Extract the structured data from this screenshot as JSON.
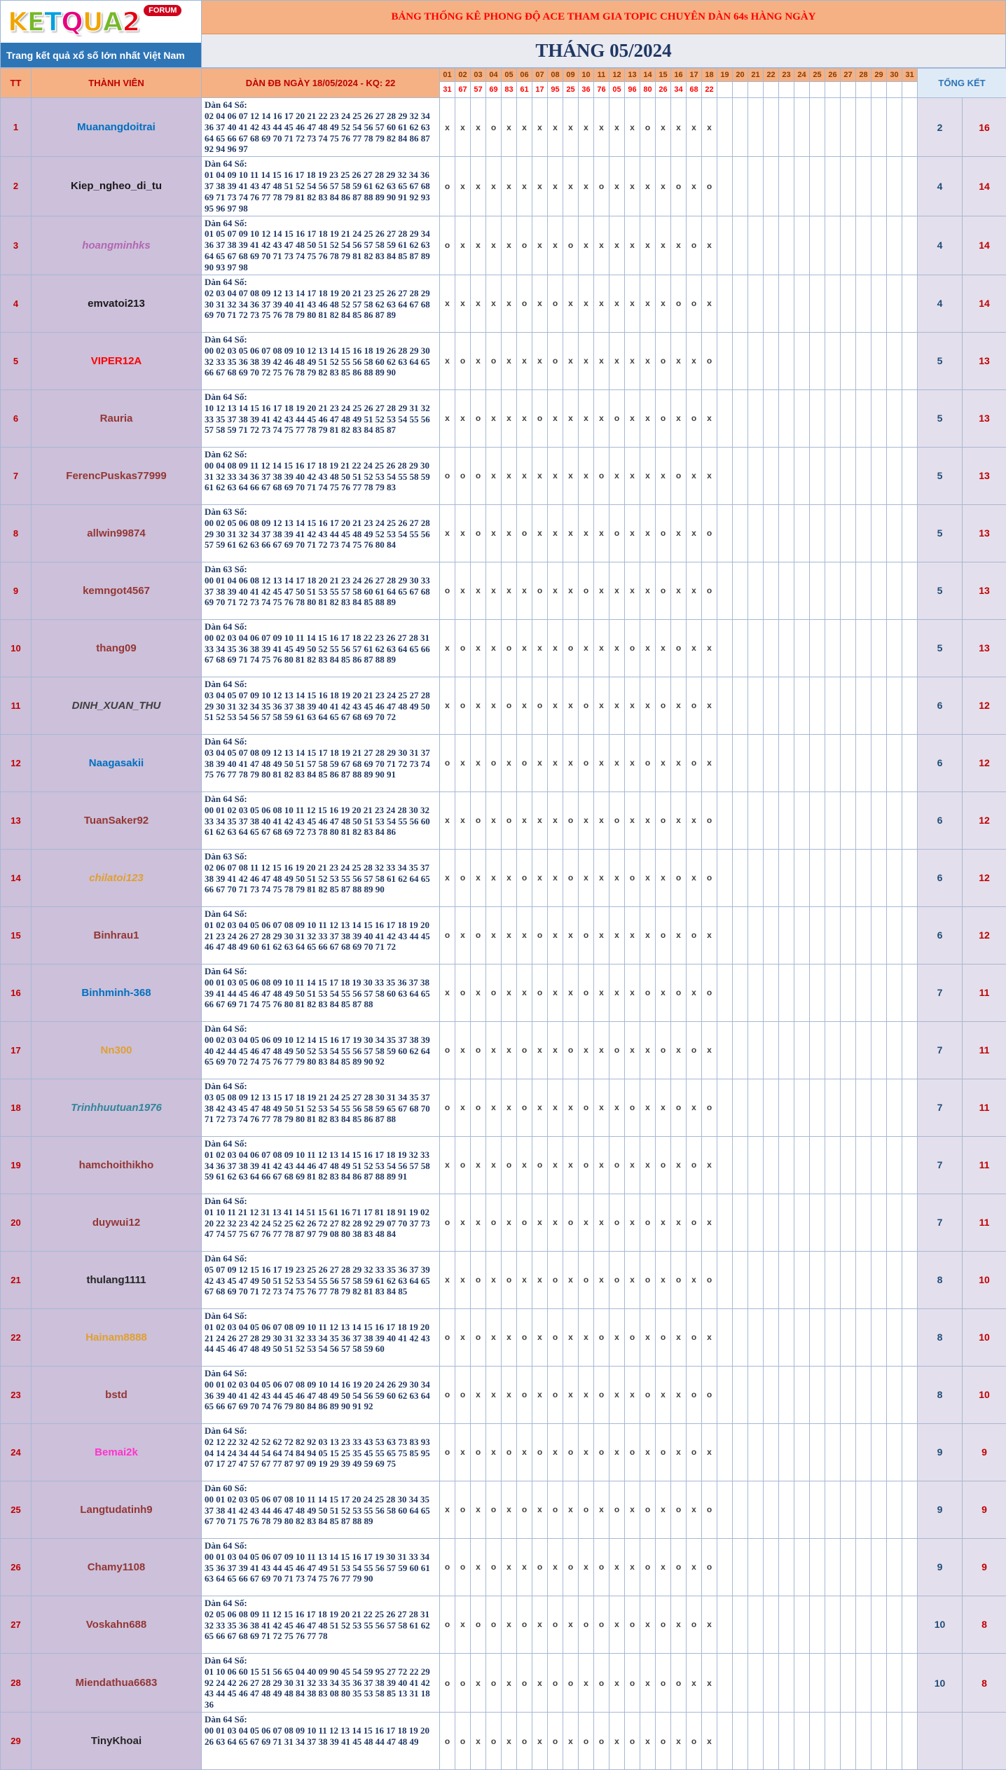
{
  "logo": {
    "letters": [
      {
        "ch": "K",
        "color": "#F0A500"
      },
      {
        "ch": "E",
        "color": "#76B82A"
      },
      {
        "ch": "T",
        "color": "#00A0DF"
      },
      {
        "ch": "Q",
        "color": "#E6007E"
      },
      {
        "ch": "U",
        "color": "#F0A500"
      },
      {
        "ch": "A",
        "color": "#76B82A"
      },
      {
        "ch": "2",
        "color": "#E30613"
      }
    ],
    "forum_badge": "FORUM",
    "tagline": "Trang kết quả xổ số lớn nhất Việt Nam"
  },
  "banner": {
    "title": "BẢNG THỐNG KÊ PHONG ĐỘ ACE THAM GIA TOPIC CHUYÊN DÀN 64s HÀNG NGÀY",
    "month": "THÁNG 05/2024"
  },
  "table": {
    "headers": {
      "tt": "TT",
      "member": "THÀNH VIÊN",
      "dan": "DÀN ĐB NGÀY 18/05/2024 - KQ: 22",
      "total": "TỔNG KẾT"
    },
    "days": [
      "01",
      "02",
      "03",
      "04",
      "05",
      "06",
      "07",
      "08",
      "09",
      "10",
      "11",
      "12",
      "13",
      "14",
      "15",
      "16",
      "17",
      "18",
      "19",
      "20",
      "21",
      "22",
      "23",
      "24",
      "25",
      "26",
      "27",
      "28",
      "29",
      "30",
      "31"
    ],
    "results": [
      "31",
      "67",
      "57",
      "69",
      "83",
      "61",
      "17",
      "95",
      "25",
      "36",
      "76",
      "05",
      "96",
      "80",
      "26",
      "34",
      "68",
      "22",
      "",
      "",
      "",
      "",
      "",
      "",
      "",
      "",
      "",
      "",
      "",
      "",
      ""
    ],
    "rows": [
      {
        "tt": "1",
        "name": "Muanangdoitrai",
        "color": "#0070C0",
        "italic": false,
        "label": "Dàn 64 Số:",
        "numbers": "02 04 06 07 12 14 16 17 20 21 22 23 24 25 26 27 28 29 32 34 36 37 40 41 42 43 44 45 46 47 48 49 52 54 56 57 60 61 62 63 64 65 66 67 68 69 70 71 72 73 74 75 76 77 78 79 82 84 86 87 92 94 96 97",
        "marks": "xxxoxxxxxxxxxoxxxx",
        "o": "2",
        "x": "16"
      },
      {
        "tt": "2",
        "name": "Kiep_ngheo_di_tu",
        "color": "#1A1A1A",
        "italic": false,
        "label": "Dàn 64 Số:",
        "numbers": "01 04 09 10 11 14 15 16 17 18 19 23 25 26 27 28 29 32 34 36 37 38 39 41 43 47 48 51 52 54 56 57 58 59 61 62 63 65 67 68 69 71 73 74 76 77 78 79 81 82 83 84 86 87 88 89 90 91 92 93 95 96 97 98",
        "marks": "oxxxxxxxxxoxxxxoxo",
        "o": "4",
        "x": "14"
      },
      {
        "tt": "3",
        "name": "hoangminhks",
        "color": "#B366B3",
        "italic": true,
        "label": "Dàn 64 Số:",
        "numbers": "01 05 07 09 10 12 14 15 16 17 18 19 21 24 25 26 27 28 29 34 36 37 38 39 41 42 43 47 48 50 51 52 54 56 57 58 59 61 62 63 64 65 67 68 69 70 71 73 74 75 76 78 79 81 82 83 84 85 87 89 90 93 97 98",
        "marks": "oxxxxoxxoxxxxxxxox",
        "o": "4",
        "x": "14"
      },
      {
        "tt": "4",
        "name": "emvatoi213",
        "color": "#1A1A1A",
        "italic": false,
        "label": "Dàn 64 Số:",
        "numbers": "02 03 04 07 08 09 12 13 14 17 18 19 20 21 23 25 26 27 28 29 30 31 32 34 36 37 39 40 41 43 46 48 52 57 58 62 63 64 67 68 69 70 71 72 73 75 76 78 79 80 81 82 84 85 86 87 89",
        "marks": "xxxxxoxoxxxxxxxoox",
        "o": "4",
        "x": "14"
      },
      {
        "tt": "5",
        "name": "VIPER12A",
        "color": "#FF0000",
        "italic": false,
        "label": "Dàn 64 Số:",
        "numbers": "00 02 03 05 06 07 08 09 10 12 13 14 15 16 18 19 26 28 29 30 32 33 35 36 38 39 42 46 48 49 51 52 55 56 58 60 62 63 64 65 66 67 68 69 70 72 75 76 78 79 82 83 85 86 88 89 90",
        "marks": "xoxoxxxoxxxxxxoxxo",
        "o": "5",
        "x": "13"
      },
      {
        "tt": "6",
        "name": "Rauria",
        "color": "#943634",
        "italic": false,
        "label": "Dàn 64 Số:",
        "numbers": "10 12 13 14 15 16 17 18 19 20 21 23 24 25 26 27 28 29 31 32 33 35 37 38 39 41 42 43 44 45 46 47 48 49 51 52 53 54 55 56 57 58 59 71 72 73 74 75 77 78 79 81 82 83 84 85 87",
        "marks": "xxoxxxoxxxxoxxoxox",
        "o": "5",
        "x": "13"
      },
      {
        "tt": "7",
        "name": "FerencPuskas77999",
        "color": "#943634",
        "italic": false,
        "label": "Dàn 62 Số:",
        "numbers": "00 04 08 09 11 12 14 15 16 17 18 19 21 22 24 25 26 28 29 30 31 32 33 34 36 37 38 39 40 42 43 48 50 51 52 53 54 55 58 59 61 62 63 64 66 67 68 69 70 71 74 75 76 77 78 79 83",
        "marks": "oooxxxxxxxoxxxxoxx",
        "o": "5",
        "x": "13"
      },
      {
        "tt": "8",
        "name": "allwin99874",
        "color": "#943634",
        "italic": false,
        "label": "Dàn 63 Số:",
        "numbers": "00 02 05 06 08 09 12 13 14 15 16 17 20 21 23 24 25 26 27 28 29 30 31 32 34 37 38 39 41 42 43 44 45 48 49 52 53 54 55 56 57 59 61 62 63 66 67 69 70 71 72 73 74 75 76 80 84",
        "marks": "xxoxxoxxxxxoxxoxxo",
        "o": "5",
        "x": "13"
      },
      {
        "tt": "9",
        "name": "kemngot4567",
        "color": "#943634",
        "italic": false,
        "label": "Dàn 63 Số:",
        "numbers": "00 01 04 06 08 12 13 14 17 18 20 21 23 24 26 27 28 29 30 33 37 38 39 40 41 42 45 47 50 51 53 55 57 58 60 61 64 65 67 68 69 70 71 72 73 74 75 76 78 80 81 82 83 84 85 88 89",
        "marks": "oxxxxxoxxoxxxxoxxo",
        "o": "5",
        "x": "13"
      },
      {
        "tt": "10",
        "name": "thang09",
        "color": "#943634",
        "italic": false,
        "label": "Dàn 64 Số:",
        "numbers": "00 02 03 04 06 07 09 10 11 14 15 16 17 18 22 23 26 27 28 31 33 34 35 36 38 39 41 45 49 50 52 55 56 57 61 62 63 64 65 66 67 68 69 71 74 75 76 80 81 82 83 84 85 86 87 88 89",
        "marks": "xoxxoxxxoxxxoxxoxx",
        "o": "5",
        "x": "13"
      },
      {
        "tt": "11",
        "name": "DINH_XUAN_THU",
        "color": "#404040",
        "italic": true,
        "label": "Dàn 64 Số:",
        "numbers": "03 04 05 07 09 10 12 13 14 15 16 18 19 20 21 23 24 25 27 28 29 30 31 32 34 35 36 37 38 39 40 41 42 43 45 46 47 48 49 50 51 52 53 54 56 57 58 59 61 63 64 65 67 68 69 70 72",
        "marks": "xoxxoxoxxoxxxxoxox",
        "o": "6",
        "x": "12"
      },
      {
        "tt": "12",
        "name": "Naagasakii",
        "color": "#0070C0",
        "italic": false,
        "label": "Dàn 64 Số:",
        "numbers": "03 04 05 07 08 09 12 13 14 15 17 18 19 21 27 28 29 30 31 37 38 39 40 41 47 48 49 50 51 57 58 59 67 68 69 70 71 72 73 74 75 76 77 78 79 80 81 82 83 84 85 86 87 88 89 90 91",
        "marks": "oxxoxoxxxoxxxoxxox",
        "o": "6",
        "x": "12"
      },
      {
        "tt": "13",
        "name": "TuanSaker92",
        "color": "#943634",
        "italic": false,
        "label": "Dàn 64 Số:",
        "numbers": "00 01 02 03 05 06 08 10 11 12 15 16 19 20 21 23 24 28 30 32 33 34 35 37 38 40 41 42 43 45 46 47 48 50 51 53 54 55 56 60 61 62 63 64 65 67 68 69 72 73 78 80 81 82 83 84 86",
        "marks": "xxoxoxxxoxxoxxoxxo",
        "o": "6",
        "x": "12"
      },
      {
        "tt": "14",
        "name": "chilatoi123",
        "color": "#E0A030",
        "italic": true,
        "label": "Dàn 63 Số:",
        "numbers": "02 06 07 08 11 12 15 16 19 20 21 23 24 25 28 32 33 34 35 37 38 39 41 42 46 47 48 49 50 51 52 53 55 56 57 58 61 62 64 65 66 67 70 71 73 74 75 78 79 81 82 85 87 88 89 90",
        "marks": "xoxxxoxxoxxxoxxoxo",
        "o": "6",
        "x": "12"
      },
      {
        "tt": "15",
        "name": "Binhrau1",
        "color": "#943634",
        "italic": false,
        "label": "Dàn 64 Số:",
        "numbers": "01 02 03 04 05 06 07 08 09 10 11 12 13 14 15 16 17 18 19 20 21 23 24 26 27 28 29 30 31 32 33 37 38 39 40 41 42 43 44 45 46 47 48 49 60 61 62 63 64 65 66 67 68 69 70 71 72",
        "marks": "oxoxxxoxxoxxxxoxox",
        "o": "6",
        "x": "12"
      },
      {
        "tt": "16",
        "name": "Binhminh-368",
        "color": "#0070C0",
        "italic": false,
        "label": "Dàn 64 Số:",
        "numbers": "00 01 03 05 06 08 09 10 11 14 15 17 18 19 30 33 35 36 37 38 39 41 44 45 46 47 48 49 50 51 53 54 55 56 57 58 60 63 64 65 66 67 69 71 74 75 76 80 81 82 83 84 85 87 88",
        "marks": "xoxoxxoxxoxxxoxoxo",
        "o": "7",
        "x": "11"
      },
      {
        "tt": "17",
        "name": "Nn300",
        "color": "#E0A030",
        "italic": false,
        "label": "Dàn 64 Số:",
        "numbers": "00 02 03 04 05 06 09 10 12 14 15 16 17 19 30 34 35 37 38 39 40 42 44 45 46 47 48 49 50 52 53 54 55 56 57 58 59 60 62 64 65 69 70 72 74 75 76 77 79 80 83 84 85 89 90 92",
        "marks": "oxoxxoxxoxxoxxoxox",
        "o": "7",
        "x": "11"
      },
      {
        "tt": "18",
        "name": "Trinhhuutuan1976",
        "color": "#31859C",
        "italic": true,
        "label": "Dàn 64 Số:",
        "numbers": "03 05 08 09 12 13 15 17 18 19 21 24 25 27 28 30 31 34 35 37 38 42 43 45 47 48 49 50 51 52 53 54 55 56 58 59 65 67 68 70 71 72 73 74 76 77 78 79 80 81 82 83 84 85 86 87 88",
        "marks": "oxoxxoxxxoxxoxxoxo",
        "o": "7",
        "x": "11"
      },
      {
        "tt": "19",
        "name": "hamchoithikho",
        "color": "#943634",
        "italic": false,
        "label": "Dàn 64 Số:",
        "numbers": "01 02 03 04 06 07 08 09 10 11 12 13 14 15 16 17 18 19 32 33 34 36 37 38 39 41 42 43 44 46 47 48 49 51 52 53 54 56 57 58 59 61 62 63 64 66 67 68 69 81 82 83 84 86 87 88 89 91",
        "marks": "xoxxoxoxxoxoxxoxox",
        "o": "7",
        "x": "11"
      },
      {
        "tt": "20",
        "name": "duywui12",
        "color": "#943634",
        "italic": false,
        "label": "Dàn 64 Số:",
        "numbers": "01 10 11 21 12 31 13 41 14 51 15 61 16 71 17 81 18 91 19 02 20 22 32 23 42 24 52 25 62 26 72 27 82 28 92 29 07 70 37 73 47 74 57 75 67 76 77 78 87 97 79 08 80 38 83 48 84",
        "marks": "oxxoxoxxoxxoxoxxox",
        "o": "7",
        "x": "11"
      },
      {
        "tt": "21",
        "name": "thulang1111",
        "color": "#262626",
        "italic": false,
        "label": "Dàn 64 Số:",
        "numbers": "05 07 09 12 15 16 17 19 23 25 26 27 28 29 32 33 35 36 37 39 42 43 45 47 49 50 51 52 53 54 55 56 57 58 59 61 62 63 64 65 67 68 69 70 71 72 73 74 75 76 77 78 79 82 81 83 84 85",
        "marks": "xxoxoxxoxoxoxoxoxo",
        "o": "8",
        "x": "10"
      },
      {
        "tt": "22",
        "name": "Hainam8888",
        "color": "#E0A030",
        "italic": false,
        "label": "Dàn 64 Số:",
        "numbers": "01 02 03 04 05 06 07 08 09 10 11 12 13 14 15 16 17 18 19 20 21 24 26 27 28 29 30 31 32 33 34 35 36 37 38 39 40 41 42 43 44 45 46 47 48 49 50 51 52 53 54 56 57 58 59 60",
        "marks": "oxoxxoxoxxoxoxoxox",
        "o": "8",
        "x": "10"
      },
      {
        "tt": "23",
        "name": "bstd",
        "color": "#943634",
        "italic": false,
        "label": "Dàn 64 Số:",
        "numbers": "00 01 02 03 04 05 06 07 08 09 10 14 16 19 20 24 26 29 30 34 36 39 40 41 42 43 44 45 46 47 48 49 50 54 56 59 60 62 63 64 65 66 67 69 70 74 76 79 80 84 86 89 90 91 92",
        "marks": "ooxxxoxoxxoxxoxxoo",
        "o": "8",
        "x": "10"
      },
      {
        "tt": "24",
        "name": "Bemai2k",
        "color": "#FF33CC",
        "italic": false,
        "label": "Dàn 64 Số:",
        "numbers": "02 12 22 32 42 52 62 72 82 92 03 13 23 33 43 53 63 73 83 93 04 14 24 34 44 54 64 74 84 94 05 15 25 35 45 55 65 75 85 95 07 17 27 47 57 67 77 87 97 09 19 29 39 49 59 69 75",
        "marks": "oxoxoxoxoxoxoxoxox",
        "o": "9",
        "x": "9"
      },
      {
        "tt": "25",
        "name": "Langtudatinh9",
        "color": "#943634",
        "italic": false,
        "label": "Dàn 60 Số:",
        "numbers": "00 01 02 03 05 06 07 08 10 11 14 15 17 20 24 25 28 30 34 35 37 38 41 42 43 44 46 47 48 49 50 51 52 53 55 56 58 60 64 65 67 70 71 75 76 78 79 80 82 83 84 85 87 88 89",
        "marks": "xoxoxoxoxoxoxoxoxo",
        "o": "9",
        "x": "9"
      },
      {
        "tt": "26",
        "name": "Chamy1108",
        "color": "#943634",
        "italic": false,
        "label": "Dàn 64 Số:",
        "numbers": "00 01 03 04 05 06 07 09 10 11 13 14 15 16 17 19 30 31 33 34 35 36 37 39 41 43 44 45 46 47 49 51 53 54 55 56 57 59 60 61 63 64 65 66 67 69 70 71 73 74 75 76 77 79 90",
        "marks": "ooxoxxoxoxoxxoxoxo",
        "o": "9",
        "x": "9"
      },
      {
        "tt": "27",
        "name": "Voskahn688",
        "color": "#943634",
        "italic": false,
        "label": "Dàn 64 Số:",
        "numbers": "02 05 06 08 09 11 12 15 16 17 18 19 20 21 22 25 26 27 28 31 32 33 35 36 38 41 42 45 46 47 48 51 52 53 55 56 57 58 61 62 65 66 67 68 69 71 72 75 76 77 78",
        "marks": "oxooxoxoxooxoxoxox",
        "o": "10",
        "x": "8"
      },
      {
        "tt": "28",
        "name": "Miendathua6683",
        "color": "#943634",
        "italic": false,
        "label": "Dàn 64 Số:",
        "numbers": "01 10 06 60 15 51 56 65 04 40 09 90 45 54 59 95 27 72 22 29 92 24 42 26 27 28 29 30 31 32 33 34 35 36 37 38 39 40 41 42 43 44 45 46 47 48 49 48 84 38 83 08 80 35 53 58 85 13 31 18 36",
        "marks": "ooxoxoxooxoxoxooxx",
        "o": "10",
        "x": "8"
      },
      {
        "tt": "29",
        "name": "TinyKhoai",
        "color": "#262626",
        "italic": false,
        "label": "Dàn 64 Số:",
        "numbers": "00 01 03 04 05 06 07 08 09 10 11 12 13 14 15 16 17 18 19 20 26 63 64 65 67 69 71 31 34 37 38 39 41 45 48 44 47 48 49",
        "marks": "ooxoxoxoxooxoxoxox",
        "o": "",
        "x": ""
      }
    ]
  }
}
